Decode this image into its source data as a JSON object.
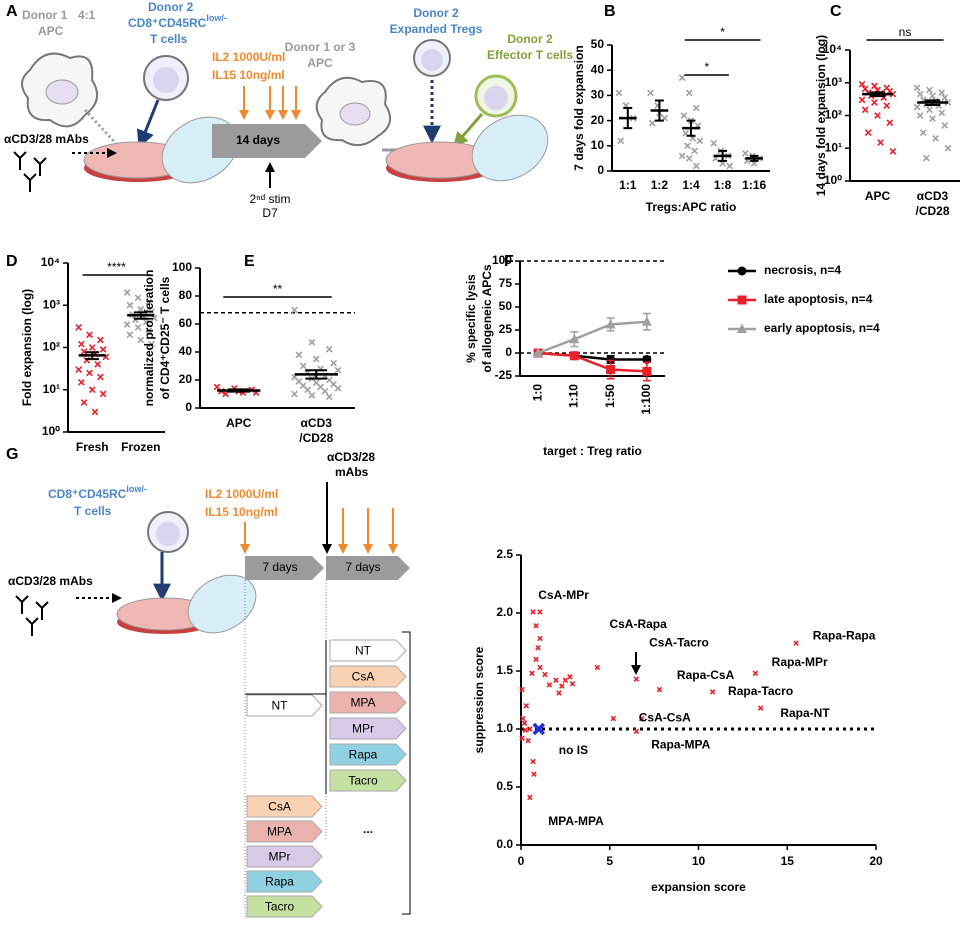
{
  "diagram_a": {
    "label": "A",
    "donor1": "Donor 1",
    "donor1_cell": "APC",
    "ratio": "4:1",
    "donor2": "Donor 2",
    "tcell_marker": "CD8⁺CD45RC",
    "tcell_marker_sup": "low/-",
    "tcell": "T cells",
    "antibodies": "αCD3/28 mAbs",
    "il2": "IL2 1000U/ml",
    "il15": "IL15 10ng/ml",
    "duration": "14 days",
    "restim": "2ⁿᵈ stim",
    "restim_day": "D7",
    "apc_donor": "Donor 1 or 3",
    "apc": "APC",
    "treg_donor": "Donor 2",
    "treg": "Expanded Tregs",
    "effector_donor": "Donor 2",
    "effector": "Effector T cells"
  },
  "diagram_g": {
    "label": "G",
    "tcell_marker": "CD8⁺CD45RC",
    "tcell_marker_sup": "low/-",
    "tcell": "T cells",
    "antibodies": "αCD3/28 mAbs",
    "il2": "IL2 1000U/ml",
    "il15": "IL15 10ng/ml",
    "restim_antibodies": [
      "αCD3/28",
      "mAbs"
    ],
    "durations": [
      "7 days",
      "7 days"
    ],
    "first_treatments": [
      {
        "name": "NT",
        "color": "#ffffff"
      }
    ],
    "second_treatments": [
      {
        "name": "NT",
        "color": "#ffffff"
      },
      {
        "name": "CsA",
        "color": "#f9d2b4"
      },
      {
        "name": "MPA",
        "color": "#eab3ad"
      },
      {
        "name": "MPr",
        "color": "#d8cbe8"
      },
      {
        "name": "Rapa",
        "color": "#8fd0e2"
      },
      {
        "name": "Tacro",
        "color": "#c6e0a2"
      }
    ],
    "other_first_treatments": [
      {
        "name": "CsA",
        "color": "#f9d2b4"
      },
      {
        "name": "MPA",
        "color": "#eab3ad"
      },
      {
        "name": "MPr",
        "color": "#d8cbe8"
      },
      {
        "name": "Rapa",
        "color": "#8fd0e2"
      },
      {
        "name": "Tacro",
        "color": "#c6e0a2"
      }
    ],
    "ellipsis": "..."
  },
  "chart_data": [
    {
      "type": "dot",
      "panel_label": "B",
      "ylabel": "7 days fold expansion",
      "xlabel": "Tregs:APC ratio",
      "categories": [
        "1:1",
        "1:2",
        "1:4",
        "1:8",
        "1:16"
      ],
      "color": "#a0a0a0",
      "points": [
        [
          31,
          26,
          21,
          12
        ],
        [
          31,
          26,
          21,
          19,
          23
        ],
        [
          37,
          31,
          25,
          22,
          20,
          18,
          15,
          13,
          12,
          10,
          8,
          6,
          5,
          2
        ],
        [
          11,
          8,
          6,
          5,
          3,
          2
        ],
        [
          7,
          6,
          5,
          4,
          3
        ]
      ],
      "means": [
        21,
        24,
        17,
        6,
        5
      ],
      "sem": [
        4,
        4,
        3,
        2,
        1
      ],
      "ylim": [
        0,
        50
      ],
      "yticks": [
        0,
        10,
        20,
        30,
        40,
        50
      ],
      "significance": [
        {
          "label": "*",
          "from": "1:4",
          "to": "1:8"
        },
        {
          "label": "*",
          "from": "1:4",
          "to": "1:16"
        }
      ]
    },
    {
      "type": "dot",
      "panel_label": "C",
      "ylabel": "14 days fold expansion (log)",
      "log": true,
      "categories": [
        "APC",
        [
          "αCD3",
          "/CD28"
        ]
      ],
      "colors": [
        "#e8202a",
        "#a0a0a0"
      ],
      "points": [
        [
          900,
          800,
          700,
          650,
          600,
          550,
          500,
          480,
          450,
          400,
          350,
          300,
          250,
          200,
          150,
          100,
          60,
          30,
          15,
          8
        ],
        [
          700,
          600,
          500,
          450,
          400,
          350,
          300,
          280,
          250,
          220,
          200,
          180,
          150,
          120,
          100,
          80,
          50,
          30,
          20,
          10,
          5
        ]
      ],
      "means": [
        450,
        250
      ],
      "sem": [
        60,
        40
      ],
      "ylim": [
        1,
        10000
      ],
      "yticks": [
        {
          "value": 1,
          "label": "10⁰"
        },
        {
          "value": 10,
          "label": "10¹"
        },
        {
          "value": 100,
          "label": "10²"
        },
        {
          "value": 1000,
          "label": "10³"
        },
        {
          "value": 10000,
          "label": "10⁴"
        }
      ],
      "significance": [
        {
          "label": "ns",
          "from": "APC",
          "to": [
            "αCD3",
            "/CD28"
          ]
        }
      ]
    },
    {
      "type": "dot",
      "panel_label": "D",
      "ylabel": "Fold expansion (log)",
      "log": true,
      "categories": [
        "Fresh",
        "Frozen"
      ],
      "colors": [
        "#e8202a",
        "#a0a0a0"
      ],
      "points": [
        [
          300,
          200,
          150,
          120,
          100,
          90,
          80,
          70,
          60,
          50,
          40,
          30,
          25,
          20,
          15,
          10,
          8,
          5,
          3
        ],
        [
          2000,
          1500,
          1200,
          1000,
          800,
          700,
          600,
          550,
          500,
          450,
          400,
          350,
          300,
          250,
          200,
          150,
          120
        ]
      ],
      "means": [
        65,
        580
      ],
      "sem": [
        12,
        100
      ],
      "ylim": [
        1,
        10000
      ],
      "yticks": [
        {
          "value": 1,
          "label": "10⁰"
        },
        {
          "value": 10,
          "label": "10¹"
        },
        {
          "value": 100,
          "label": "10²"
        },
        {
          "value": 1000,
          "label": "10³"
        },
        {
          "value": 10000,
          "label": "10⁴"
        }
      ],
      "significance": [
        {
          "label": "****",
          "from": "Fresh",
          "to": "Frozen"
        }
      ]
    },
    {
      "type": "dot",
      "panel_label": "E",
      "ylabel": [
        "normalized proliferation",
        "of CD4⁺CD25⁻ T cells"
      ],
      "categories": [
        "APC",
        [
          "αCD3",
          "/CD28"
        ]
      ],
      "colors": [
        "#e8202a",
        "#a0a0a0"
      ],
      "points": [
        [
          15,
          14,
          13,
          12,
          12,
          11,
          10,
          11
        ],
        [
          70,
          47,
          42,
          38,
          35,
          32,
          30,
          28,
          27,
          25,
          23,
          22,
          21,
          20,
          19,
          18,
          17,
          16,
          15,
          14,
          13,
          12,
          10,
          9,
          8
        ]
      ],
      "means": [
        12.5,
        24
      ],
      "sem": [
        0.8,
        3
      ],
      "ylim": [
        0,
        100
      ],
      "yticks": [
        0,
        20,
        40,
        60,
        80,
        100
      ],
      "reference_lines": [
        68
      ],
      "significance": [
        {
          "label": "**",
          "from": "APC",
          "to": [
            "αCD3",
            "/CD28"
          ]
        }
      ]
    },
    {
      "type": "line",
      "panel_label": "F",
      "ylabel": [
        "% specific lysis",
        "of allogeneic APCs"
      ],
      "xlabel": "target : Treg ratio",
      "categories": [
        "1:0",
        "1:10",
        "1:50",
        "1:100"
      ],
      "series": [
        {
          "name": "necrosis, n=4",
          "color": "#000000",
          "marker": "circle",
          "values": [
            0,
            -3,
            -7,
            -7
          ],
          "errors": [
            0,
            3,
            4,
            3
          ]
        },
        {
          "name": "late apoptosis, n=4",
          "color": "#e8202a",
          "marker": "square",
          "values": [
            0,
            -3,
            -18,
            -20
          ],
          "errors": [
            0,
            3,
            10,
            10
          ]
        },
        {
          "name": "early apoptosis, n=4",
          "color": "#a0a0a0",
          "marker": "triangle",
          "values": [
            0,
            15,
            31,
            34
          ],
          "errors": [
            0,
            8,
            7,
            9
          ]
        }
      ],
      "ylim": [
        -25,
        100
      ],
      "yticks": [
        -25,
        0,
        25,
        50,
        75,
        100
      ],
      "reference_lines": [
        0,
        100
      ],
      "legend": "right"
    },
    {
      "type": "scatter",
      "xlabel": "expansion score",
      "ylabel": "suppression score",
      "series": [
        {
          "color": "#e8202a",
          "x": [
            0.68,
            1.07,
            0.85,
            1.07,
            0.96,
            0.85,
            1.07,
            0.62,
            1.35,
            1.6,
            1.97,
            2.3,
            2.5,
            2.76,
            2.9,
            2.14,
            0.06,
            0.1,
            0.25,
            0.06,
            0.4,
            0.68,
            0.73,
            0.5,
            4.3,
            6.5,
            6.8,
            6.5,
            7.8,
            10.8,
            13.2,
            15.5,
            13.5,
            5.2,
            0.3,
            0.2,
            0.5
          ],
          "y": [
            2.01,
            2.01,
            1.89,
            1.78,
            1.7,
            1.6,
            1.53,
            1.48,
            1.47,
            1.38,
            1.42,
            1.37,
            1.42,
            1.45,
            1.39,
            1.31,
            1.34,
            1.09,
            0.99,
            0.92,
            0.9,
            0.72,
            0.61,
            0.41,
            1.53,
            1.43,
            1.09,
            0.98,
            1.34,
            1.32,
            1.48,
            1.74,
            1.18,
            1.09,
            1.2,
            1.05,
            1.0
          ]
        },
        {
          "name": "no IS",
          "color": "#1a2fe0",
          "x": [
            1
          ],
          "y": [
            1
          ]
        }
      ],
      "annotations": [
        {
          "text": "CsA-MPr",
          "x": 2.4,
          "y": 2.15
        },
        {
          "text": "CsA-Rapa",
          "x": 6.6,
          "y": 1.9
        },
        {
          "text": "CsA-Tacro",
          "x": 8.9,
          "y": 1.74
        },
        {
          "text": "Rapa-Rapa",
          "x": 18.2,
          "y": 1.8
        },
        {
          "text": "Rapa-MPr",
          "x": 15.7,
          "y": 1.57
        },
        {
          "text": "Rapa-CsA",
          "x": 10.4,
          "y": 1.46
        },
        {
          "text": "Rapa-Tacro",
          "x": 13.5,
          "y": 1.32
        },
        {
          "text": "Rapa-NT",
          "x": 16,
          "y": 1.13
        },
        {
          "text": "CsA-CsA",
          "x": 8.1,
          "y": 1.09
        },
        {
          "text": "Rapa-MPA",
          "x": 9.0,
          "y": 0.86
        },
        {
          "text": "MPA-MPA",
          "x": 3.1,
          "y": 0.2
        }
      ],
      "xlim": [
        0,
        20
      ],
      "xticks": [
        0,
        5,
        10,
        15,
        20
      ],
      "ylim": [
        0,
        2.5
      ],
      "yticks": [
        {
          "value": 0,
          "label": "0.0"
        },
        0.5,
        {
          "value": 1,
          "label": "1.0"
        },
        1.5,
        {
          "value": 2,
          "label": "2.0"
        },
        2.5
      ],
      "reference_lines": [
        1
      ]
    }
  ]
}
